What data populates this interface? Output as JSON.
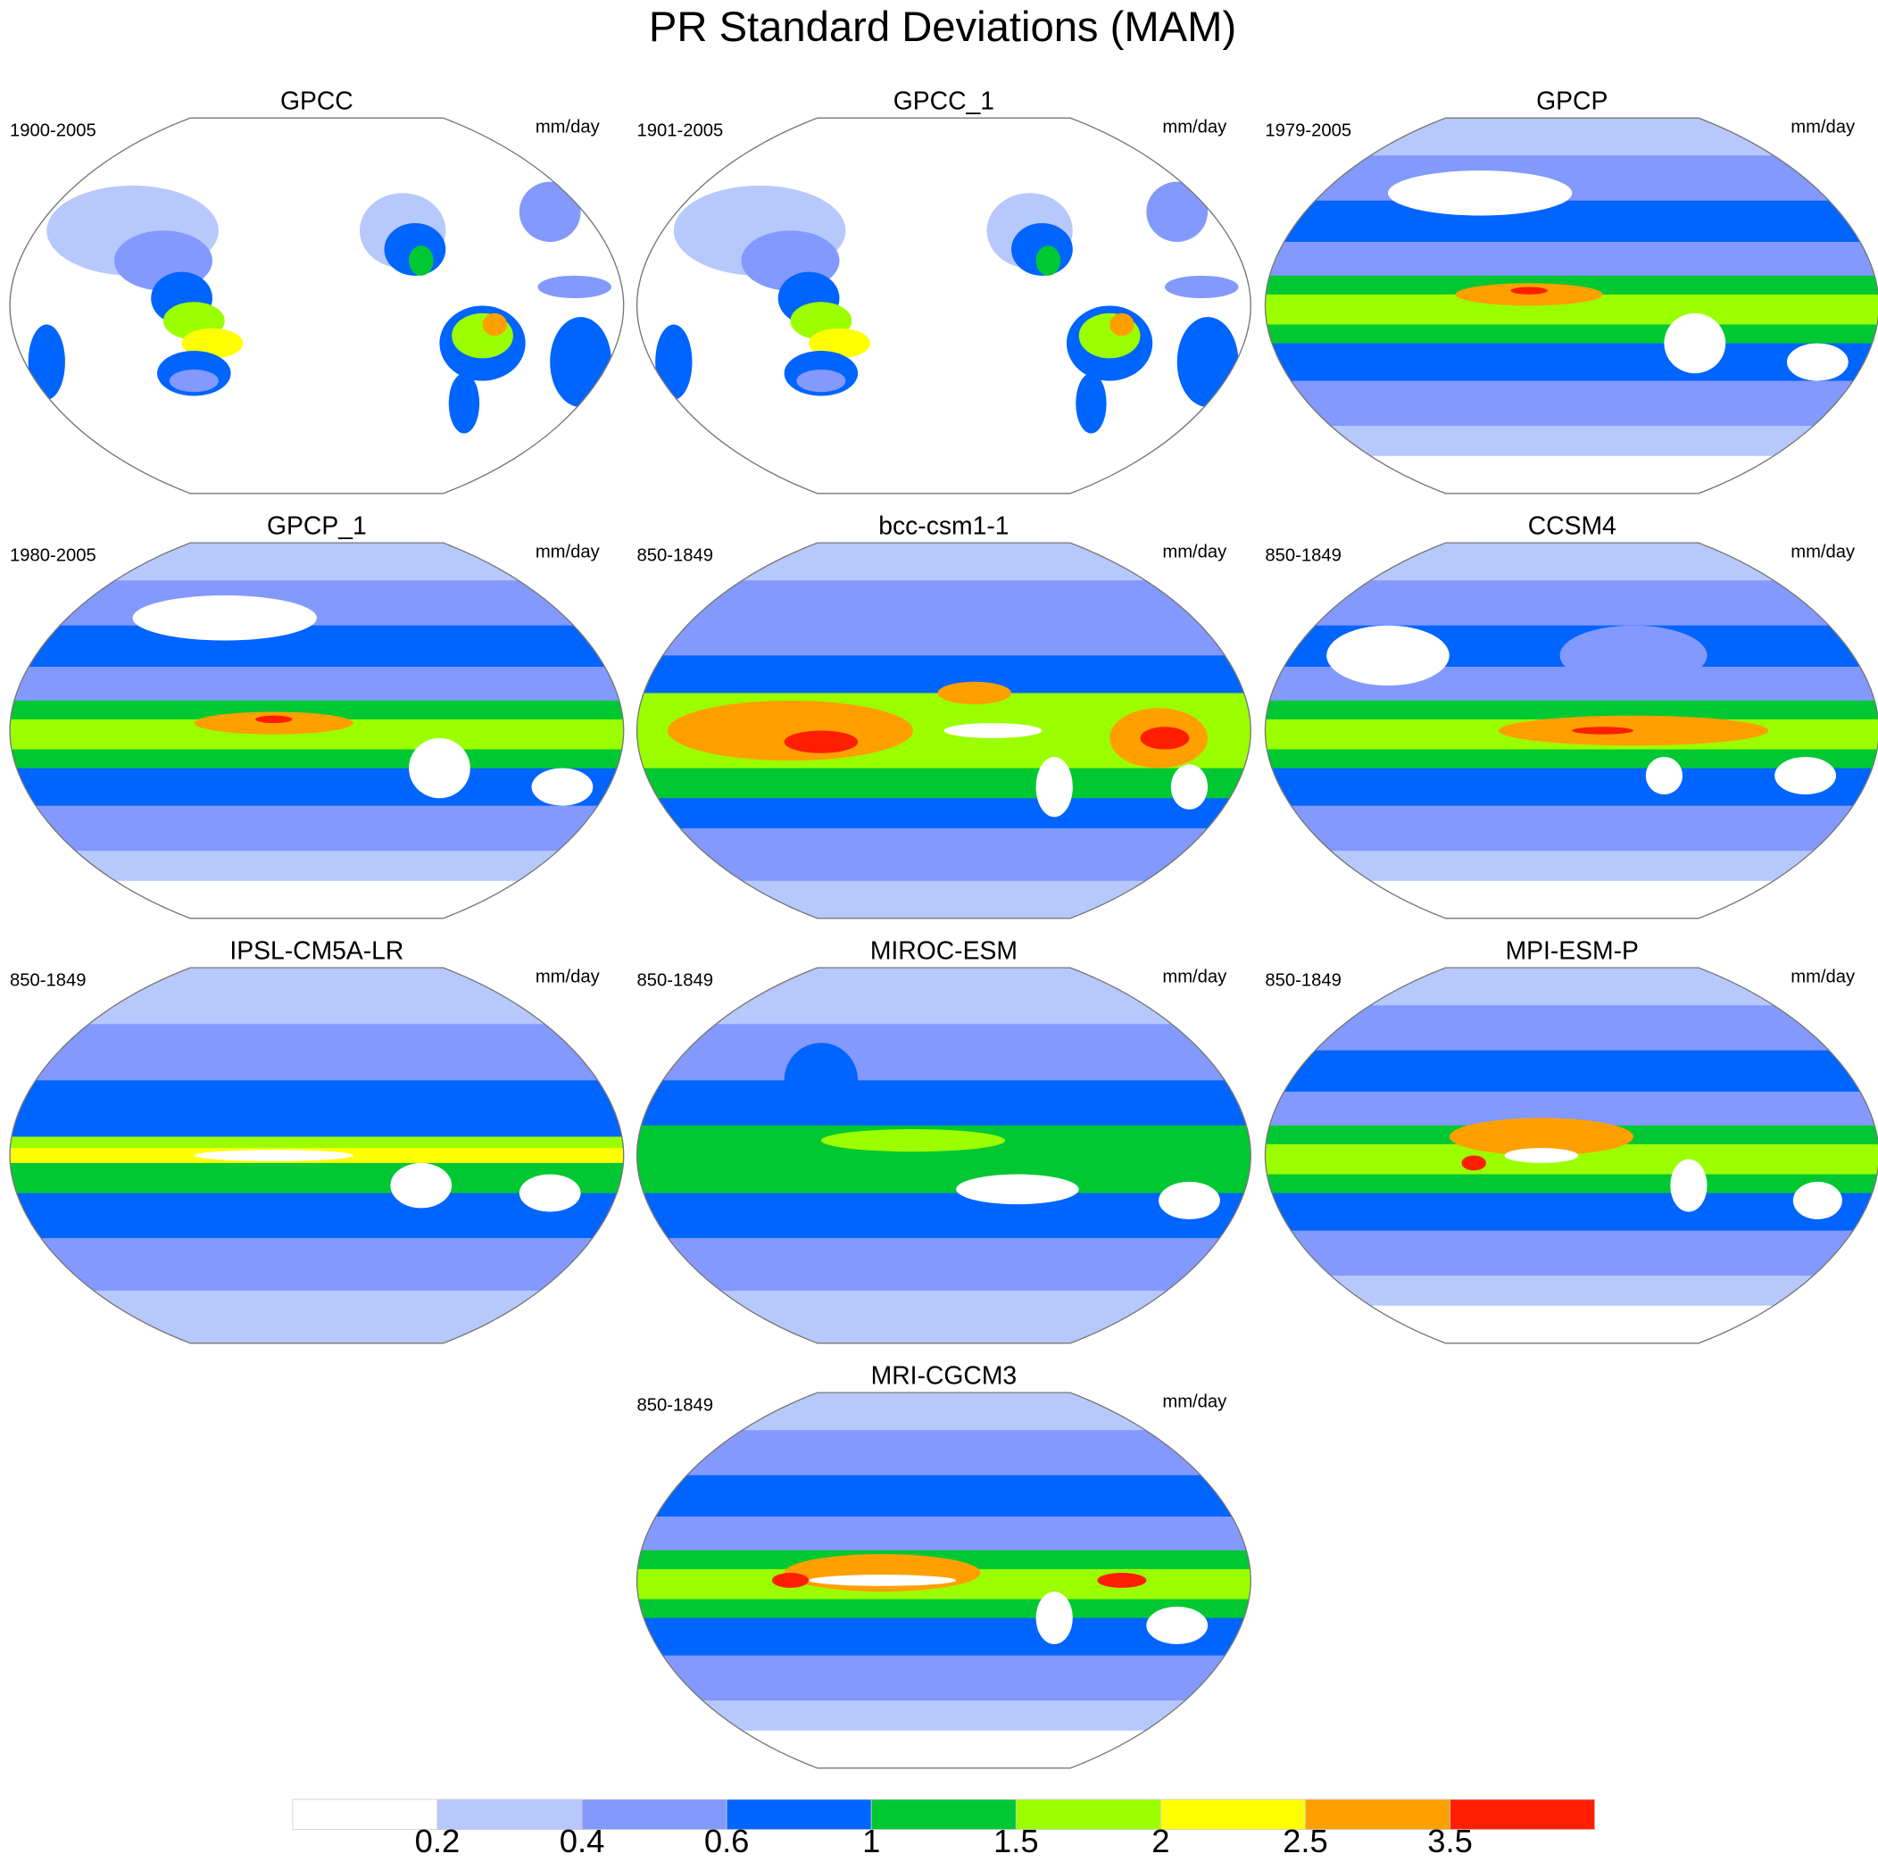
{
  "title": "PR Standard Deviations (MAM)",
  "chart_data": {
    "type": "map-panels",
    "title": "PR Standard Deviations (MAM)",
    "projection": "Robinson, Pacific-centered",
    "panels": [
      {
        "title": "GPCC",
        "period": "1900-2005",
        "units": "mm/day"
      },
      {
        "title": "GPCC_1",
        "period": "1901-2005",
        "units": "mm/day"
      },
      {
        "title": "GPCP",
        "period": "1979-2005",
        "units": "mm/day"
      },
      {
        "title": "GPCP_1",
        "period": "1980-2005",
        "units": "mm/day"
      },
      {
        "title": "bcc-csm1-1",
        "period": "850-1849",
        "units": "mm/day"
      },
      {
        "title": "CCSM4",
        "period": "850-1849",
        "units": "mm/day"
      },
      {
        "title": "IPSL-CM5A-LR",
        "period": "850-1849",
        "units": "mm/day"
      },
      {
        "title": "MIROC-ESM",
        "period": "850-1849",
        "units": "mm/day"
      },
      {
        "title": "MPI-ESM-P",
        "period": "850-1849",
        "units": "mm/day"
      },
      {
        "title": "MRI-CGCM3",
        "period": "850-1849",
        "units": "mm/day"
      }
    ],
    "colorbar": {
      "levels": [
        "0.2",
        "0.4",
        "0.6",
        "1",
        "1.5",
        "2",
        "2.5",
        "3.5"
      ],
      "colors": [
        "#ffffff",
        "#b7c8fc",
        "#8399fe",
        "#0064ff",
        "#00c832",
        "#9bff00",
        "#ffff00",
        "#ffa000",
        "#ff1e00"
      ],
      "orientation": "horizontal",
      "placement": "bottom"
    }
  }
}
